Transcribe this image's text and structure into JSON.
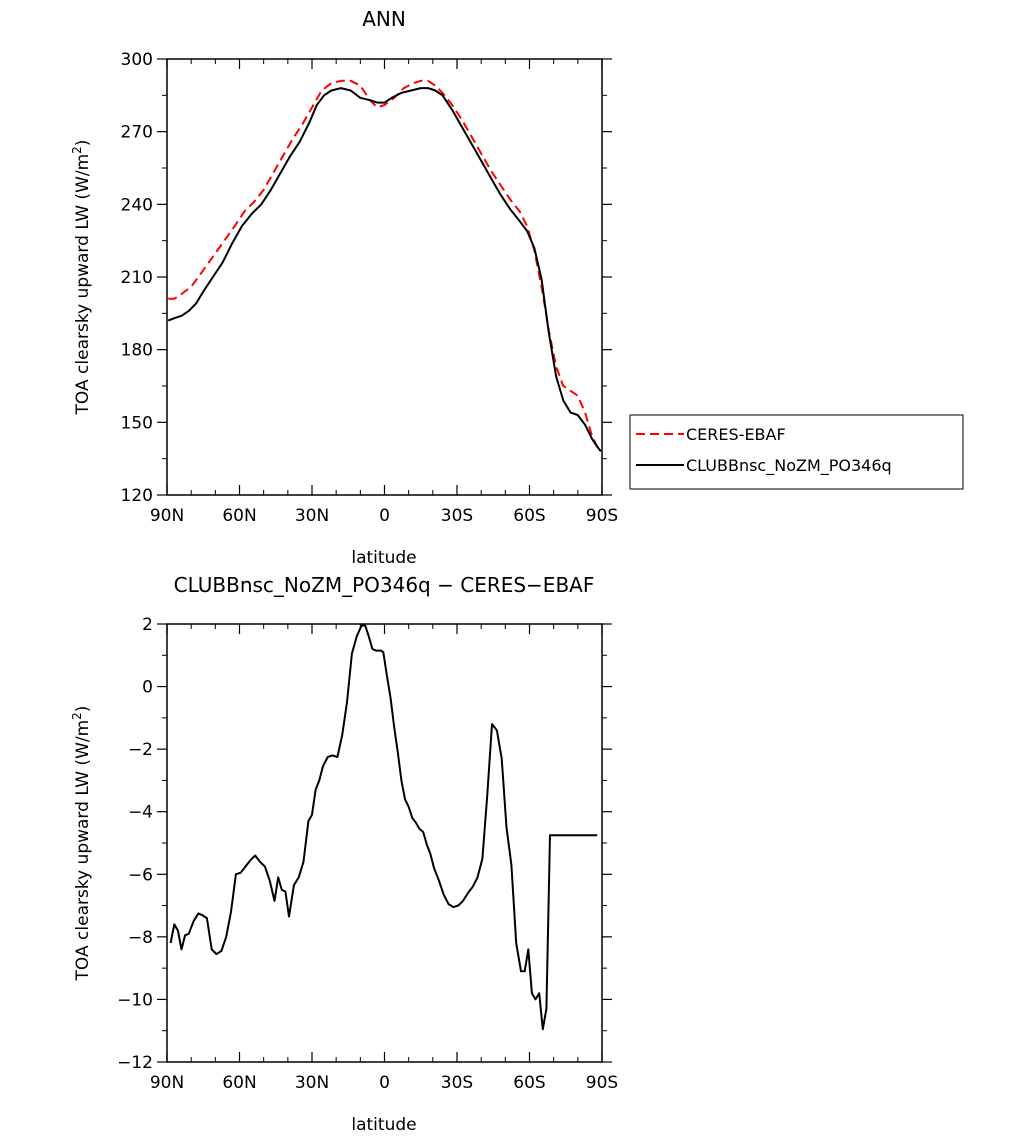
{
  "chart_data": [
    {
      "type": "line",
      "title": "ANN",
      "xlabel": "latitude",
      "ylabel": "TOA clearsky upward LW (W/m²)",
      "ylabel_parts": [
        "TOA clearsky upward LW (W/m",
        "2",
        ")"
      ],
      "xlim": [
        90,
        -90
      ],
      "ylim": [
        120,
        300
      ],
      "x_ticks": [
        90,
        60,
        30,
        0,
        -30,
        -60,
        -90
      ],
      "x_tick_labels": [
        "90N",
        "60N",
        "30N",
        "0",
        "30S",
        "60S",
        "90S"
      ],
      "y_ticks": [
        120,
        150,
        180,
        210,
        240,
        270,
        300
      ],
      "y_tick_labels": [
        "120",
        "150",
        "180",
        "210",
        "240",
        "270",
        "300"
      ],
      "legend_position": "right",
      "series": [
        {
          "name": "CERES-EBAF",
          "color": "#ff0000",
          "dashed": true,
          "x": [
            89.5,
            87,
            84,
            80,
            77,
            72,
            67,
            62,
            58,
            54,
            50,
            46,
            42,
            38,
            34,
            30,
            26,
            22,
            18,
            14,
            10,
            6,
            3,
            0,
            -4,
            -8,
            -12,
            -15,
            -18,
            -21,
            -24,
            -28,
            -32,
            -36,
            -40,
            -44,
            -48,
            -52,
            -56,
            -59,
            -62,
            -65,
            -68,
            -71,
            -74,
            -77,
            -80,
            -83,
            -86,
            -88,
            -89.5
          ],
          "y": [
            201,
            201,
            203,
            206,
            210,
            217,
            224,
            231,
            237,
            241,
            246,
            253,
            260,
            267,
            273,
            280,
            287,
            290,
            291,
            291,
            289,
            283,
            280,
            281,
            284,
            288,
            290,
            291,
            291,
            289,
            286,
            281,
            275,
            268,
            261,
            254,
            248,
            242,
            237,
            231,
            221,
            206,
            188,
            173,
            165,
            163,
            161,
            154,
            144,
            140,
            138
          ]
        },
        {
          "name": "CLUBBnsc_NoZM_PO346q",
          "color": "#000000",
          "dashed": false,
          "x": [
            89.5,
            87,
            84,
            81,
            78,
            75,
            71,
            67,
            63,
            59,
            55,
            51,
            47,
            43,
            39,
            35,
            31,
            28,
            25,
            22,
            18,
            14,
            10,
            6,
            3,
            0,
            -3,
            -7,
            -11,
            -15,
            -18,
            -21,
            -24,
            -28,
            -32,
            -36,
            -40,
            -44,
            -48,
            -52,
            -56,
            -59,
            -62,
            -65,
            -68,
            -71,
            -74,
            -77,
            -80,
            -83,
            -86,
            -88,
            -89.5
          ],
          "y": [
            192,
            193,
            194,
            196,
            199,
            204,
            210,
            216,
            224,
            231,
            236,
            240,
            246,
            253,
            260,
            266,
            274,
            281,
            285,
            287,
            288,
            287,
            284,
            283,
            282,
            282,
            284,
            286,
            287,
            288,
            288,
            287,
            285,
            279,
            272,
            265,
            258,
            251,
            244,
            238,
            233,
            229,
            222,
            209,
            187,
            169,
            159,
            154,
            153,
            149,
            143,
            140,
            138
          ]
        }
      ]
    },
    {
      "type": "line",
      "title": "CLUBBnsc_NoZM_PO346q − CERES−EBAF",
      "xlabel": "latitude",
      "ylabel": "TOA clearsky upward LW (W/m²)",
      "ylabel_parts": [
        "TOA clearsky upward LW (W/m",
        "2",
        ")"
      ],
      "xlim": [
        90,
        -90
      ],
      "ylim": [
        -12,
        2
      ],
      "x_ticks": [
        90,
        60,
        30,
        0,
        -30,
        -60,
        -90
      ],
      "x_tick_labels": [
        "90N",
        "60N",
        "30N",
        "0",
        "30S",
        "60S",
        "90S"
      ],
      "y_ticks": [
        -12,
        -10,
        -8,
        -6,
        -4,
        -2,
        0,
        2
      ],
      "y_tick_labels": [
        "−12",
        "−10",
        "−8",
        "−6",
        "−4",
        "−2",
        "0",
        "2"
      ],
      "series": [
        {
          "name": "",
          "color": "#000000",
          "dashed": false,
          "x": [
            88.5,
            87,
            85.5,
            84,
            82.5,
            81,
            79,
            77,
            75.5,
            73.5,
            71.5,
            69.5,
            67.5,
            65.5,
            63.5,
            61.5,
            59.5,
            57.5,
            55.5,
            53.5,
            51.5,
            49.5,
            47.5,
            45.5,
            44,
            42.5,
            41,
            39.5,
            37.5,
            35.5,
            33.5,
            31.5,
            30,
            28.5,
            27,
            25.5,
            23.5,
            21.5,
            19.5,
            17.5,
            15.5,
            13.5,
            11.5,
            9.5,
            8,
            6.5,
            5,
            3.5,
            2.5,
            1.5,
            0.5,
            -1,
            -2.5,
            -4,
            -5.5,
            -7,
            -8.5,
            -10,
            -11.5,
            -13,
            -14.5,
            -16,
            -17.5,
            -19,
            -20.5,
            -22.5,
            -24.5,
            -26.5,
            -28.5,
            -30.5,
            -32.5,
            -34.5,
            -36.5,
            -38.5,
            -40.5,
            -42.5,
            -44.5,
            -46.5,
            -48.5,
            -50.5,
            -52.5,
            -54.5,
            -56.5,
            -58,
            -59.5,
            -61,
            -62.5,
            -64,
            -65.5,
            -67,
            -68.5,
            -70,
            -71.5,
            -73,
            -74.5,
            -76,
            -77.5,
            -79,
            -80.5,
            -82,
            -83.5,
            -85,
            -86.5,
            -88
          ],
          "y": [
            -8.2,
            -7.6,
            -7.8,
            -8.4,
            -7.95,
            -7.9,
            -7.5,
            -7.25,
            -7.3,
            -7.4,
            -8.4,
            -8.55,
            -8.45,
            -8.0,
            -7.2,
            -6.0,
            -5.95,
            -5.75,
            -5.55,
            -5.4,
            -5.6,
            -5.75,
            -6.2,
            -6.85,
            -6.1,
            -6.5,
            -6.55,
            -7.35,
            -6.35,
            -6.1,
            -5.6,
            -4.3,
            -4.1,
            -3.3,
            -3.0,
            -2.55,
            -2.25,
            -2.2,
            -2.25,
            -1.55,
            -0.5,
            1.05,
            1.6,
            1.95,
            1.95,
            1.6,
            1.2,
            1.15,
            1.15,
            1.15,
            1.1,
            0.35,
            -0.35,
            -1.3,
            -2.1,
            -3.0,
            -3.6,
            -3.85,
            -4.2,
            -4.35,
            -4.55,
            -4.65,
            -5.05,
            -5.35,
            -5.8,
            -6.2,
            -6.65,
            -6.95,
            -7.05,
            -7.0,
            -6.85,
            -6.6,
            -6.4,
            -6.1,
            -5.5,
            -3.5,
            -1.2,
            -1.4,
            -2.3,
            -4.5,
            -5.7,
            -8.2,
            -9.1,
            -9.1,
            -8.4,
            -9.8,
            -10.0,
            -9.8,
            -10.95,
            -10.3,
            -4.75,
            -4.75,
            -4.75,
            -4.75,
            -4.75,
            -4.75,
            -4.75,
            -4.75,
            -4.75,
            -4.75,
            -4.75,
            -4.75,
            -4.75,
            -4.75
          ]
        }
      ]
    }
  ]
}
